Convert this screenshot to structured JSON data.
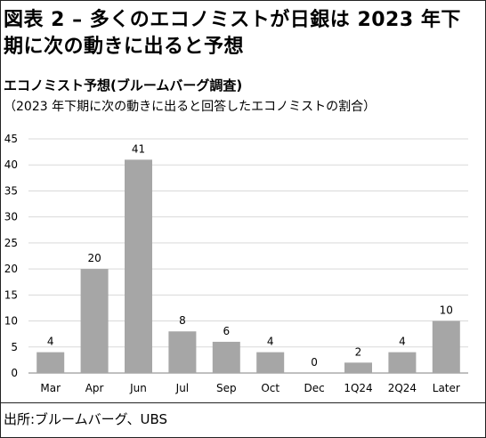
{
  "title": "図表 2 – 多くのエコノミストが日銀は 2023 年下期に次の動きに出ると予想",
  "subtitle": "エコノミスト予想(ブルームバーグ調査)",
  "subtitle2": "（2023 年下期に次の動きに出ると回答したエコノミストの割合）",
  "source": "出所:ブルームバーグ、UBS",
  "colors": {
    "bar": "#a6a6a6",
    "grid": "#d9d9d9",
    "axis": "#808080"
  },
  "chart_data": {
    "type": "bar",
    "categories": [
      "Mar",
      "Apr",
      "Jun",
      "Jul",
      "Sep",
      "Oct",
      "Dec",
      "1Q24",
      "2Q24",
      "Later"
    ],
    "values": [
      4,
      20,
      41,
      8,
      6,
      4,
      0,
      2,
      4,
      10
    ],
    "data_labels": [
      "4",
      "20",
      "41",
      "8",
      "6",
      "4",
      "0",
      "2",
      "4",
      "10"
    ],
    "yticks": [
      "0",
      "5",
      "10",
      "15",
      "20",
      "25",
      "30",
      "35",
      "40",
      "45"
    ],
    "ylim": [
      0,
      45
    ],
    "grid": true,
    "legend": "none"
  }
}
